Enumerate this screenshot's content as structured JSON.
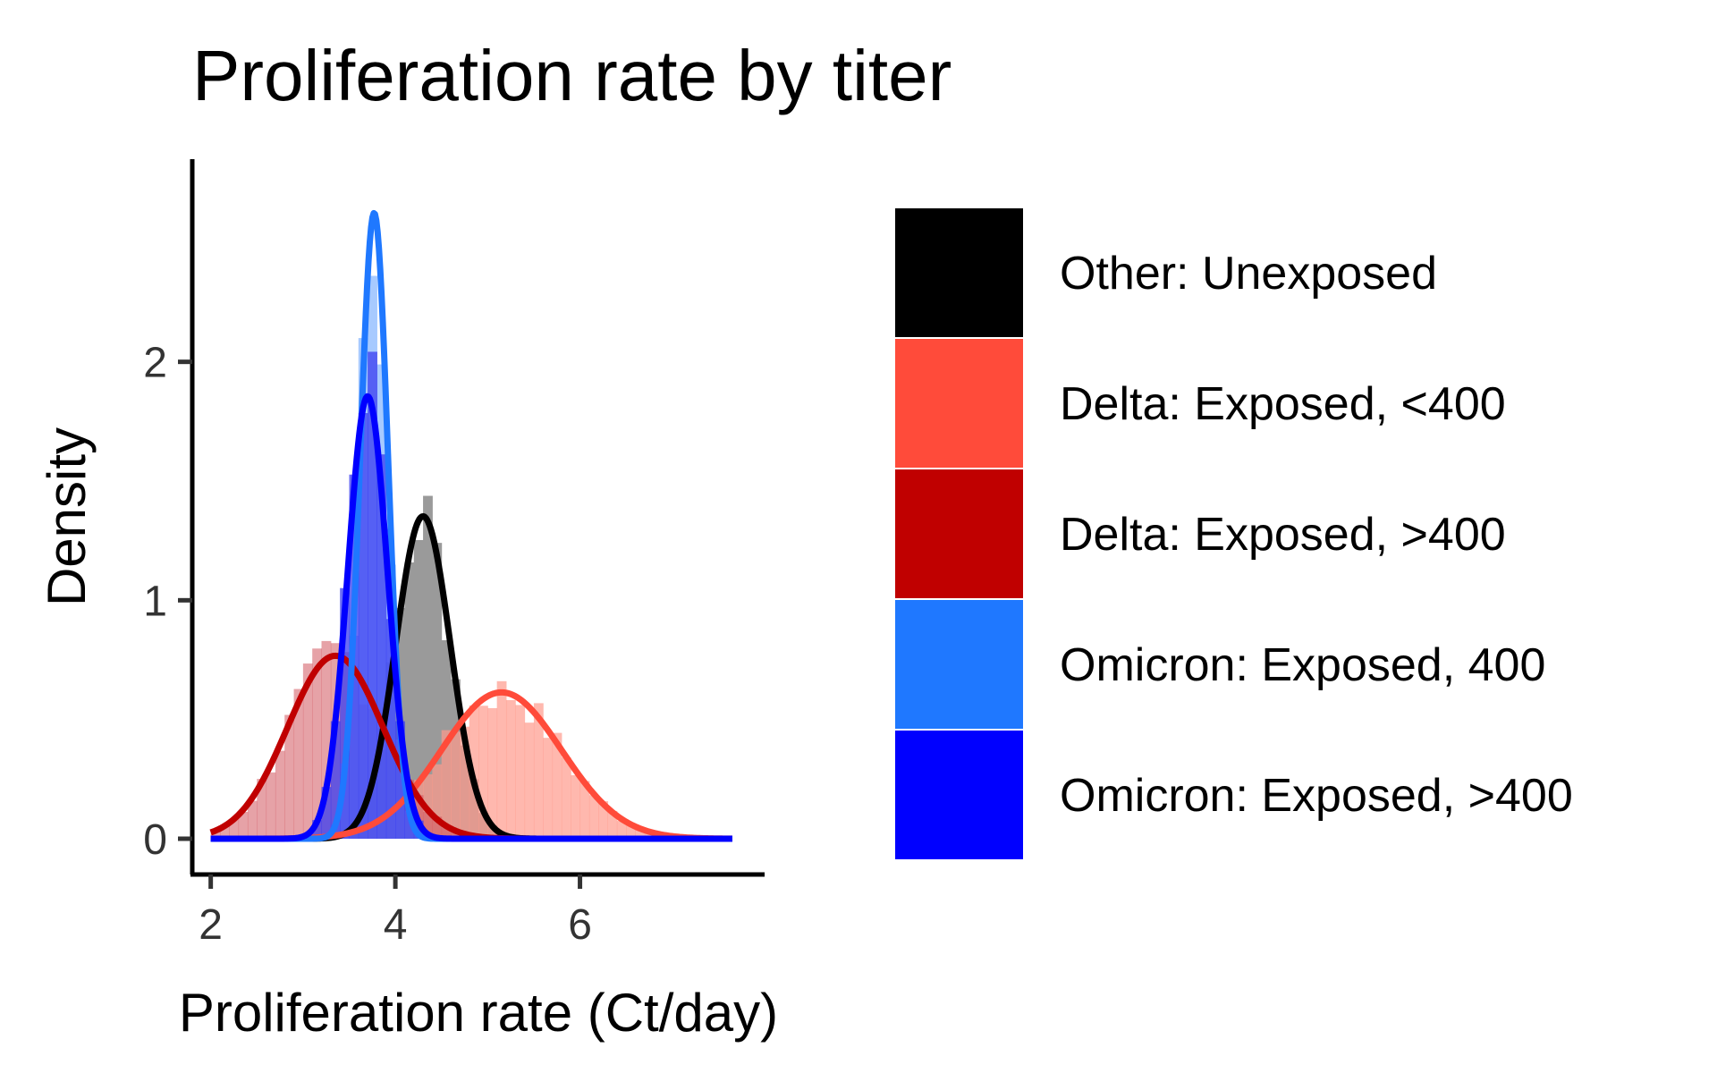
{
  "chart_data": {
    "type": "histogram-density",
    "title": "Proliferation rate by titer",
    "xlabel": "Proliferation rate (Ct/day)",
    "ylabel": "Density",
    "xlim": [
      1.8,
      8.0
    ],
    "ylim": [
      -0.15,
      2.85
    ],
    "xticks": [
      2,
      4,
      6
    ],
    "yticks": [
      0,
      1,
      2
    ],
    "grid": false,
    "legend_position": "right",
    "series": [
      {
        "name": "Other: Unexposed",
        "color": "#000000",
        "fill": "#9a9a9a",
        "fill_opacity": 1.0,
        "mean": 4.3,
        "sd": 0.295,
        "xrange": [
          3.2,
          5.3
        ]
      },
      {
        "name": "Delta: Exposed, <400",
        "color": "#ff4b3a",
        "fill": "#ff9a8c",
        "fill_opacity": 0.7,
        "mean": 5.15,
        "sd": 0.65,
        "xrange": [
          3.3,
          7.65
        ]
      },
      {
        "name": "Delta: Exposed, >400",
        "color": "#c00000",
        "fill": "#d2555e",
        "fill_opacity": 0.55,
        "mean": 3.35,
        "sd": 0.52,
        "xrange": [
          2.0,
          5.0
        ]
      },
      {
        "name": "Omicron: Exposed, 400",
        "color": "#1f78ff",
        "fill": "#8ab8ff",
        "fill_opacity": 0.75,
        "mean": 3.77,
        "sd": 0.152,
        "xrange": [
          2.0,
          7.65
        ]
      },
      {
        "name": "Omicron: Exposed, >400",
        "color": "#0000ff",
        "fill": "#3a3cf0",
        "fill_opacity": 0.75,
        "mean": 3.7,
        "sd": 0.215,
        "xrange": [
          2.0,
          7.65
        ]
      }
    ]
  }
}
